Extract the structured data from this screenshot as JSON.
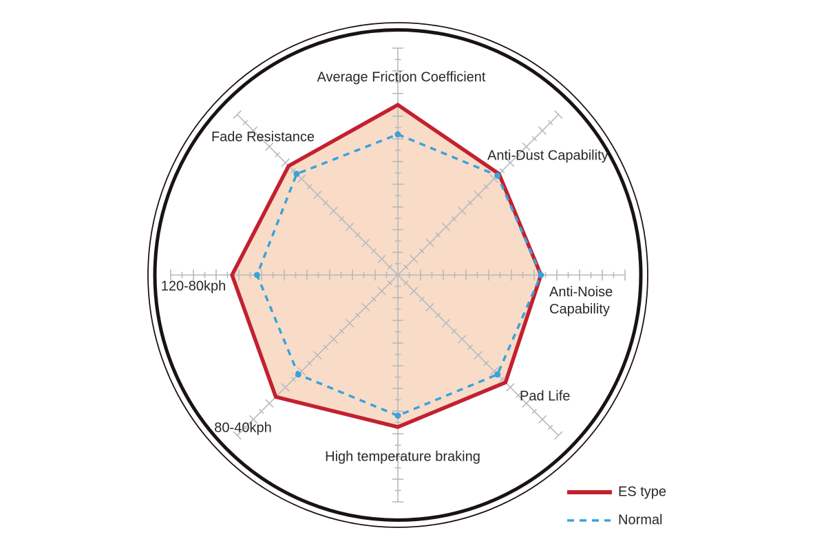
{
  "chart_data": {
    "type": "radar",
    "axes": [
      "Average Friction Coefficient",
      "Anti-Dust Capability",
      "Anti-Noise Capability",
      "Pad Life",
      "High temperature braking",
      "80-40kph",
      "120-80kph",
      "Fade Resistance"
    ],
    "scale": {
      "min": 0,
      "max": 10,
      "minor_tick": 0.5,
      "major_tick": 1.0
    },
    "series": [
      {
        "name": "ES type",
        "style": "solid",
        "color": "#c32130",
        "fill": "#f8dcc8",
        "values": [
          7.5,
          6.3,
          6.3,
          6.7,
          6.7,
          7.6,
          7.3,
          6.8
        ]
      },
      {
        "name": "Normal",
        "style": "dashed",
        "color": "#3aa2db",
        "fill": "none",
        "values": [
          6.2,
          6.2,
          6.3,
          6.2,
          6.2,
          6.2,
          6.2,
          6.3
        ]
      }
    ],
    "legend": {
      "position": "bottom-right"
    },
    "grid": "8 radial axes with cross ticks, double outer ring, no concentric gridlines"
  },
  "colors": {
    "axis_gray": "#b6babd",
    "ring_black": "#1a1315",
    "text": "#2a2628",
    "background": "#ffffff"
  }
}
